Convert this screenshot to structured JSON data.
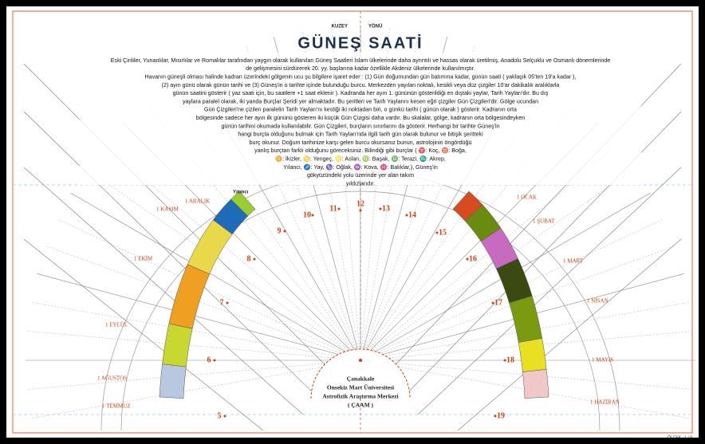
{
  "header": {
    "north_label": "KUZEY",
    "direction_label": "YÖNÜ",
    "title": "GÜNEŞ SAATİ"
  },
  "description": [
    "Eski Çinliler, Yunanlılar, Mısırlılar ve Romalılar tarafından yaygın olarak kullanılan Güneş Saatleri İslam ülkelerinde daha ayrıntılı ve hassas olarak üretilmiş, Anadolu Selçuklu ve Osmanlı dönemlerinde",
    "de gelişmesini sürdürerek 20. yy. başlarına kadar özellikle Akdeniz ülkelerinde kullanılmıştır.",
    "Havanın güneşli olması halinde kadran üzerindeki gölgenin ucu şu bilgilere işaret eder : (1) Gün doğumundan gün batımına kadar, günün saati ( yaklaşık 05'ten 19'a kadar ),",
    "(2) ayın günü olarak günün tarihi ve (3) Güneş'in o tarihte içinde bulunduğu burcu. Merkezden yayılan noktalı, kesikli veya düz çizgiler 10'ar dakikalık aralıklarla",
    "günün saatini gösterir ( yaz saati için, bu saatlere +1 saat eklenir ). Kadranda her ayın 1. gününün gösterildiği en dıştaki yaylar, Tarih Yayları'dır. Bu dış",
    "yaylara paralel olarak, iki yanda Burçlar Şeridi yer almaktadır. Bu şeritleri ve Tarih Yaylarını kesen eğri çizgiler Gün Çizgileri'dir. Gölge ucundan",
    "Gün Çizgileri'ne çizilen paralelin Tarih Yayları'nı kestiği iki noktadan biri, o günkü tarihi ( günün olarak ) gösterir. Kadranın orta",
    "bölgesinde sadece her ayın ilk gününü gösteren iki küçük Gün Çizgisi daha vardır. Bu skalalar, gölge, kadranın orta bölgesindeyken",
    "günün tarihini okumada kullanılabilir. Gün Çizgileri, burçların sınırlarını da gösterir. Herhangi bir tarihte Güneş'in",
    "hangi burçta olduğunu bulmak için Tarih Yayları'nda ilgili tarih gün olarak bulunur ve bitişik şeritteki",
    "burç okunur. Doğum tarihinize karşı gelen burcu okursanız bunun, astrolojinin öngördüğü",
    "yanlış burçtan farklı olduğunu göreceksiniz. Bilindiği gibi burçlar ( ♈: Koç, ♉: Boğa,",
    "♊: İkizler, ♋: Yengeç, ♌: Aslan, ♍: Başak, ♎: Terazi, ♏: Akrep,",
    "Yılancı, ♐: Yay, ♑: Oğlak, ♒: Kova, ♓: Balıklar,), Güneş'in",
    "gökyüzündeki yolu üzerinde yer alan takım",
    "yıldızlarıdır."
  ],
  "hours": [
    5,
    6,
    7,
    8,
    9,
    10,
    11,
    12,
    13,
    14,
    15,
    16,
    17,
    18,
    19
  ],
  "months_left": [
    "1 ARALIK",
    "1 KASIM",
    "1 EKİM",
    "1 EYLÜL",
    "1 AĞUSTOS",
    "1 TEMMUZ"
  ],
  "months_right": [
    "1 OCAK",
    "1 ŞUBAT",
    "1 MART",
    "1 NİSAN",
    "1 MAYIS",
    "1 HAZİRAN"
  ],
  "zodiac_note": "Yılancı",
  "institution": [
    "Çanakkale",
    "Onsekiz Mart Üniversitesi",
    "Astrofizik Araştırma Merkezi",
    "( ÇAAM )"
  ],
  "scale": "ÖLÇEK : 1 / 8"
}
